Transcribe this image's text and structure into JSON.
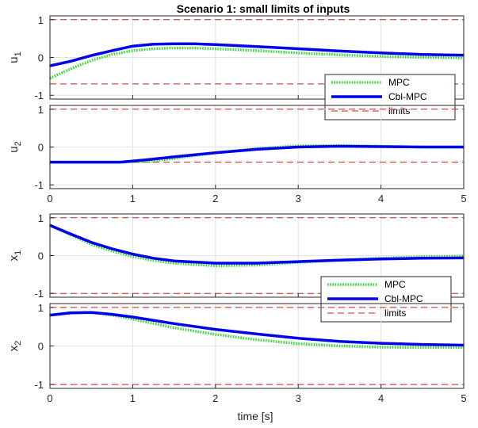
{
  "figure": {
    "title": "Scenario 1: small limits of inputs",
    "xlabel": "time [s]"
  },
  "colors": {
    "mpc": "#33dd33",
    "cbl": "#0000ee",
    "limits": "#cc2222"
  },
  "legend_labels": [
    "MPC",
    "Cbl-MPC",
    "limits"
  ],
  "chart_data": [
    {
      "type": "line",
      "ylabel": "u_1",
      "xlim": [
        0,
        5
      ],
      "ylim": [
        -1.1,
        1.1
      ],
      "yticks": [
        -1,
        0,
        1
      ],
      "xticks": [
        0,
        1,
        2,
        3,
        4,
        5
      ],
      "show_xticklabels": false,
      "grid": true,
      "legend": "right",
      "limits": [
        1,
        -0.7
      ],
      "series": [
        {
          "name": "MPC",
          "x": [
            0,
            0.25,
            0.5,
            0.75,
            1,
            1.25,
            1.5,
            1.75,
            2,
            2.5,
            3,
            3.5,
            4,
            4.5,
            5
          ],
          "y": [
            -0.55,
            -0.3,
            -0.08,
            0.08,
            0.18,
            0.23,
            0.25,
            0.25,
            0.23,
            0.18,
            0.12,
            0.07,
            0.03,
            0.0,
            -0.01
          ]
        },
        {
          "name": "Cbl-MPC",
          "x": [
            0,
            0.25,
            0.5,
            0.75,
            1,
            1.25,
            1.5,
            1.75,
            2,
            2.5,
            3,
            3.5,
            4,
            4.5,
            5
          ],
          "y": [
            -0.22,
            -0.1,
            0.05,
            0.18,
            0.3,
            0.35,
            0.36,
            0.36,
            0.34,
            0.29,
            0.23,
            0.17,
            0.12,
            0.08,
            0.06
          ]
        }
      ]
    },
    {
      "type": "line",
      "ylabel": "u_2",
      "xlim": [
        0,
        5
      ],
      "ylim": [
        -1.1,
        1.1
      ],
      "yticks": [
        -1,
        0,
        1
      ],
      "xticks": [
        0,
        1,
        2,
        3,
        4,
        5
      ],
      "show_xticklabels": true,
      "grid": true,
      "legend": "none",
      "limits": [
        1,
        -0.4
      ],
      "series": [
        {
          "name": "MPC",
          "x": [
            0,
            0.5,
            0.9,
            1.2,
            1.5,
            2,
            2.5,
            3,
            3.5,
            4,
            4.5,
            5
          ],
          "y": [
            -0.4,
            -0.4,
            -0.4,
            -0.38,
            -0.3,
            -0.15,
            -0.04,
            0.03,
            0.04,
            0.02,
            0.0,
            0.0
          ]
        },
        {
          "name": "Cbl-MPC",
          "x": [
            0,
            0.5,
            0.85,
            1.2,
            1.5,
            2,
            2.5,
            3,
            3.5,
            4,
            4.5,
            5
          ],
          "y": [
            -0.4,
            -0.4,
            -0.4,
            -0.33,
            -0.26,
            -0.15,
            -0.06,
            0.0,
            0.02,
            0.01,
            0.0,
            0.0
          ]
        }
      ]
    },
    {
      "type": "line",
      "ylabel": "x_1",
      "xlim": [
        0,
        5
      ],
      "ylim": [
        -1.1,
        1.1
      ],
      "yticks": [
        -1,
        0,
        1
      ],
      "xticks": [
        0,
        1,
        2,
        3,
        4,
        5
      ],
      "show_xticklabels": false,
      "grid": true,
      "legend": "right",
      "limits": [
        1,
        -1
      ],
      "series": [
        {
          "name": "MPC",
          "x": [
            0,
            0.25,
            0.5,
            0.75,
            1,
            1.25,
            1.5,
            2,
            2.5,
            3,
            3.5,
            4,
            4.5,
            5
          ],
          "y": [
            0.8,
            0.55,
            0.3,
            0.12,
            -0.02,
            -0.13,
            -0.2,
            -0.27,
            -0.25,
            -0.18,
            -0.12,
            -0.07,
            -0.03,
            -0.01
          ]
        },
        {
          "name": "Cbl-MPC",
          "x": [
            0,
            0.25,
            0.5,
            0.75,
            1,
            1.25,
            1.5,
            2,
            2.5,
            3,
            3.5,
            4,
            4.5,
            5
          ],
          "y": [
            0.8,
            0.57,
            0.35,
            0.18,
            0.04,
            -0.07,
            -0.14,
            -0.2,
            -0.2,
            -0.16,
            -0.12,
            -0.09,
            -0.07,
            -0.06
          ]
        }
      ]
    },
    {
      "type": "line",
      "ylabel": "x_2",
      "xlim": [
        0,
        5
      ],
      "ylim": [
        -1.1,
        1.1
      ],
      "yticks": [
        -1,
        0,
        1
      ],
      "xticks": [
        0,
        1,
        2,
        3,
        4,
        5
      ],
      "show_xticklabels": true,
      "grid": true,
      "legend": "none",
      "limits": [
        1,
        -1
      ],
      "series": [
        {
          "name": "MPC",
          "x": [
            0,
            0.25,
            0.5,
            0.75,
            1,
            1.5,
            2,
            2.5,
            3,
            3.5,
            4,
            4.5,
            5
          ],
          "y": [
            0.8,
            0.86,
            0.87,
            0.8,
            0.7,
            0.47,
            0.3,
            0.16,
            0.06,
            0.0,
            -0.03,
            -0.04,
            -0.04
          ]
        },
        {
          "name": "Cbl-MPC",
          "x": [
            0,
            0.25,
            0.5,
            0.75,
            1,
            1.5,
            2,
            2.5,
            3,
            3.5,
            4,
            4.5,
            5
          ],
          "y": [
            0.8,
            0.86,
            0.87,
            0.82,
            0.75,
            0.58,
            0.43,
            0.31,
            0.2,
            0.12,
            0.07,
            0.04,
            0.02
          ]
        }
      ]
    }
  ]
}
